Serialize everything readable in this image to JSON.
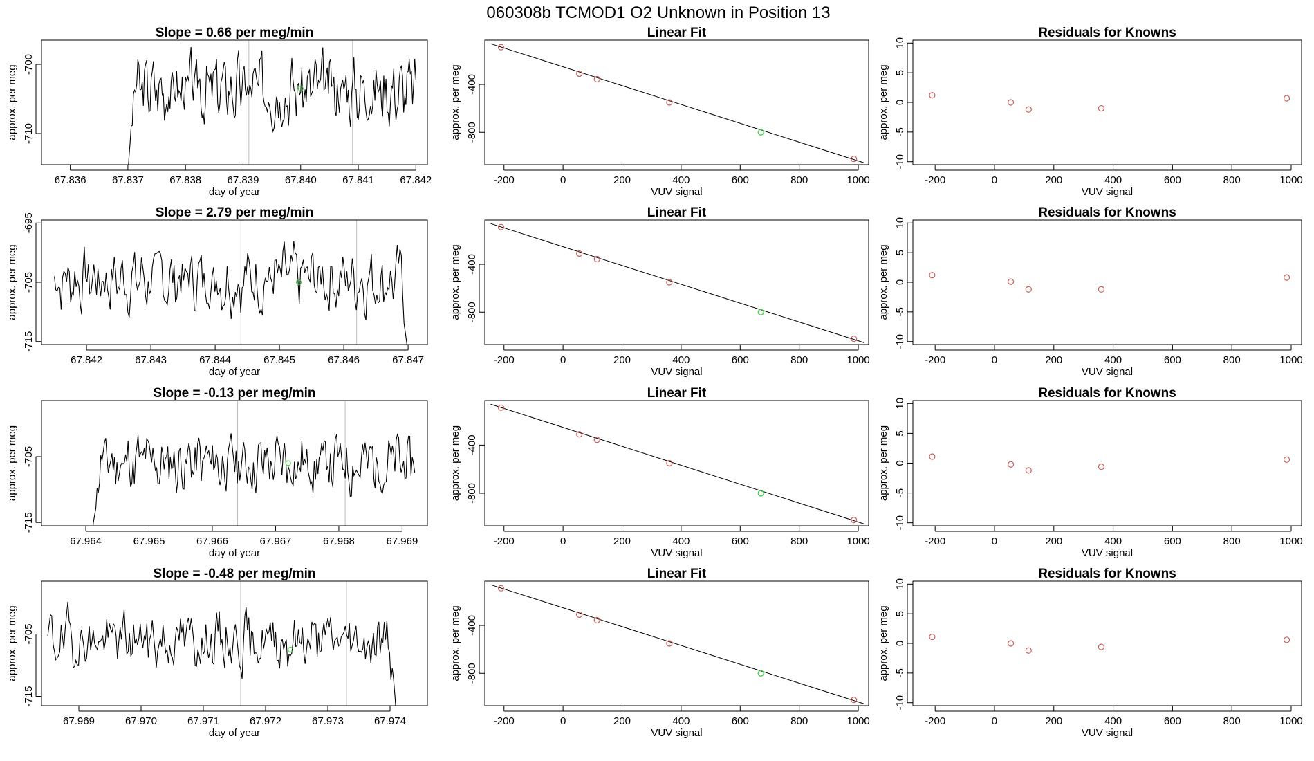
{
  "figure_title": "060308b      TCMOD1    O2 Unknown in Position  13",
  "colors": {
    "trace": "#000000",
    "known": "#cd5c5c",
    "unknown": "#33cc33",
    "box": "#000000",
    "vline": "#bebebe"
  },
  "chart_data": [
    {
      "type": "line",
      "title": "Slope =  0.66  per meg/min",
      "xlabel": "day of year",
      "ylabel": "approx. per meg",
      "xlim": [
        67.8355,
        67.8422
      ],
      "ylim": [
        -714.5,
        -696.5
      ],
      "xticks": [
        "67.836",
        "67.837",
        "67.838",
        "67.839",
        "67.840",
        "67.841",
        "67.842"
      ],
      "yticks": [
        "-710",
        "-700"
      ],
      "vlines": [
        67.8391,
        67.8409
      ],
      "series": {
        "x_start": 67.837,
        "x_end": 67.842,
        "seed": 3,
        "mean": -703.5,
        "amp": 3.5,
        "ramp_from": -716
      },
      "marker": {
        "x": 67.84,
        "y": -703.5
      }
    },
    {
      "type": "scatter",
      "title": "Linear Fit",
      "xlabel": "VUV signal",
      "ylabel": "approx. per meg",
      "xlim": [
        -265,
        1035
      ],
      "ylim": [
        -1070,
        -30
      ],
      "xticks": [
        "-200",
        "0",
        "200",
        "400",
        "600",
        "800",
        "1000"
      ],
      "yticks": [
        "-400",
        "-800"
      ],
      "knowns_x": [
        -210,
        55,
        115,
        360,
        985
      ],
      "knowns_y": [
        -89,
        -310,
        -356,
        -550,
        -1022
      ],
      "unknown": {
        "x": 670,
        "y": -800
      },
      "line": {
        "x": [
          -245,
          1020
        ],
        "y": [
          -60,
          -1055
        ]
      }
    },
    {
      "type": "scatter",
      "title": "Residuals for Knowns",
      "xlabel": "VUV signal",
      "ylabel": "approx. per meg",
      "xlim": [
        -275,
        1035
      ],
      "ylim": [
        -10.5,
        10.5
      ],
      "xticks": [
        "-200",
        "0",
        "200",
        "400",
        "600",
        "800",
        "1000"
      ],
      "yticks": [
        "10",
        "5",
        "0",
        "-5",
        "-10"
      ],
      "x": [
        -210,
        55,
        115,
        360,
        985
      ],
      "y": [
        1.2,
        0.0,
        -1.2,
        -1.0,
        0.7
      ]
    },
    {
      "type": "line",
      "title": "Slope =  2.79  per meg/min",
      "xlabel": "day of year",
      "ylabel": "approx. per meg",
      "xlim": [
        67.8413,
        67.8473
      ],
      "ylim": [
        -715.5,
        -694.5
      ],
      "xticks": [
        "67.842",
        "67.843",
        "67.844",
        "67.845",
        "67.846",
        "67.847"
      ],
      "yticks": [
        "-695",
        "-705",
        "-715"
      ],
      "vlines": [
        67.8444,
        67.8462
      ],
      "series": {
        "x_start": 67.8415,
        "x_end": 67.847,
        "seed": 7,
        "mean": -704.5,
        "amp": 4,
        "fall_to": -717
      },
      "marker": {
        "x": 67.8453,
        "y": -705
      }
    },
    {
      "type": "scatter",
      "title": "Linear Fit",
      "xlabel": "VUV signal",
      "ylabel": "approx. per meg",
      "xlim": [
        -265,
        1035
      ],
      "ylim": [
        -1070,
        -30
      ],
      "xticks": [
        "-200",
        "0",
        "200",
        "400",
        "600",
        "800",
        "1000"
      ],
      "yticks": [
        "-400",
        "-800"
      ],
      "knowns_x": [
        -210,
        55,
        115,
        360,
        985
      ],
      "knowns_y": [
        -89,
        -310,
        -356,
        -550,
        -1022
      ],
      "unknown": {
        "x": 670,
        "y": -800
      },
      "line": {
        "x": [
          -245,
          1020
        ],
        "y": [
          -60,
          -1055
        ]
      }
    },
    {
      "type": "scatter",
      "title": "Residuals for Knowns",
      "xlabel": "VUV signal",
      "ylabel": "approx. per meg",
      "xlim": [
        -275,
        1035
      ],
      "ylim": [
        -10.5,
        10.5
      ],
      "xticks": [
        "-200",
        "0",
        "200",
        "400",
        "600",
        "800",
        "1000"
      ],
      "yticks": [
        "10",
        "5",
        "0",
        "-5",
        "-10"
      ],
      "x": [
        -210,
        55,
        115,
        360,
        985
      ],
      "y": [
        1.2,
        0.1,
        -1.2,
        -1.2,
        0.8
      ]
    },
    {
      "type": "line",
      "title": "Slope =  -0.13  per meg/min",
      "xlabel": "day of year",
      "ylabel": "approx. per meg",
      "xlim": [
        67.9633,
        67.9694
      ],
      "ylim": [
        -715.5,
        -696.5
      ],
      "xticks": [
        "67.964",
        "67.965",
        "67.966",
        "67.967",
        "67.968",
        "67.969"
      ],
      "yticks": [
        "-705",
        "-715"
      ],
      "vlines": [
        67.9664,
        67.9681
      ],
      "series": {
        "x_start": 67.9641,
        "x_end": 67.9692,
        "seed": 11,
        "mean": -706,
        "amp": 3.5,
        "ramp_from": -717
      },
      "marker": {
        "x": 67.9672,
        "y": -706
      }
    },
    {
      "type": "scatter",
      "title": "Linear Fit",
      "xlabel": "VUV signal",
      "ylabel": "approx. per meg",
      "xlim": [
        -265,
        1035
      ],
      "ylim": [
        -1070,
        -30
      ],
      "xticks": [
        "-200",
        "0",
        "200",
        "400",
        "600",
        "800",
        "1000"
      ],
      "yticks": [
        "-400",
        "-800"
      ],
      "knowns_x": [
        -210,
        55,
        115,
        360,
        985
      ],
      "knowns_y": [
        -89,
        -310,
        -356,
        -550,
        -1022
      ],
      "unknown": {
        "x": 670,
        "y": -800
      },
      "line": {
        "x": [
          -245,
          1020
        ],
        "y": [
          -60,
          -1055
        ]
      }
    },
    {
      "type": "scatter",
      "title": "Residuals for Knowns",
      "xlabel": "VUV signal",
      "ylabel": "approx. per meg",
      "xlim": [
        -275,
        1035
      ],
      "ylim": [
        -10.5,
        10.5
      ],
      "xticks": [
        "-200",
        "0",
        "200",
        "400",
        "600",
        "800",
        "1000"
      ],
      "yticks": [
        "10",
        "5",
        "0",
        "-5",
        "-10"
      ],
      "x": [
        -210,
        55,
        115,
        360,
        985
      ],
      "y": [
        1.1,
        -0.2,
        -1.2,
        -0.6,
        0.6
      ]
    },
    {
      "type": "line",
      "title": "Slope =  -0.48  per meg/min",
      "xlabel": "day of year",
      "ylabel": "approx. per meg",
      "xlim": [
        67.9684,
        67.9746
      ],
      "ylim": [
        -716.5,
        -696.5
      ],
      "xticks": [
        "67.969",
        "67.970",
        "67.971",
        "67.972",
        "67.973",
        "67.974"
      ],
      "yticks": [
        "-705",
        "-715"
      ],
      "vlines": [
        67.9716,
        67.9733
      ],
      "series": {
        "x_start": 67.9685,
        "x_end": 67.9741,
        "seed": 19,
        "mean": -706,
        "amp": 3.5,
        "fall_to": -718
      },
      "marker": {
        "x": 67.9724,
        "y": -707.5
      }
    },
    {
      "type": "scatter",
      "title": "Linear Fit",
      "xlabel": "VUV signal",
      "ylabel": "approx. per meg",
      "xlim": [
        -265,
        1035
      ],
      "ylim": [
        -1070,
        -30
      ],
      "xticks": [
        "-200",
        "0",
        "200",
        "400",
        "600",
        "800",
        "1000"
      ],
      "yticks": [
        "-400",
        "-800"
      ],
      "knowns_x": [
        -210,
        55,
        115,
        360,
        985
      ],
      "knowns_y": [
        -89,
        -310,
        -356,
        -550,
        -1022
      ],
      "unknown": {
        "x": 670,
        "y": -800
      },
      "line": {
        "x": [
          -245,
          1020
        ],
        "y": [
          -60,
          -1055
        ]
      }
    },
    {
      "type": "scatter",
      "title": "Residuals for Knowns",
      "xlabel": "VUV signal",
      "ylabel": "approx. per meg",
      "xlim": [
        -275,
        1035
      ],
      "ylim": [
        -10.5,
        10.5
      ],
      "xticks": [
        "-200",
        "0",
        "200",
        "400",
        "600",
        "800",
        "1000"
      ],
      "yticks": [
        "10",
        "5",
        "0",
        "-5",
        "-10"
      ],
      "x": [
        -210,
        55,
        115,
        360,
        985
      ],
      "y": [
        1.1,
        0.0,
        -1.2,
        -0.6,
        0.6
      ]
    }
  ]
}
